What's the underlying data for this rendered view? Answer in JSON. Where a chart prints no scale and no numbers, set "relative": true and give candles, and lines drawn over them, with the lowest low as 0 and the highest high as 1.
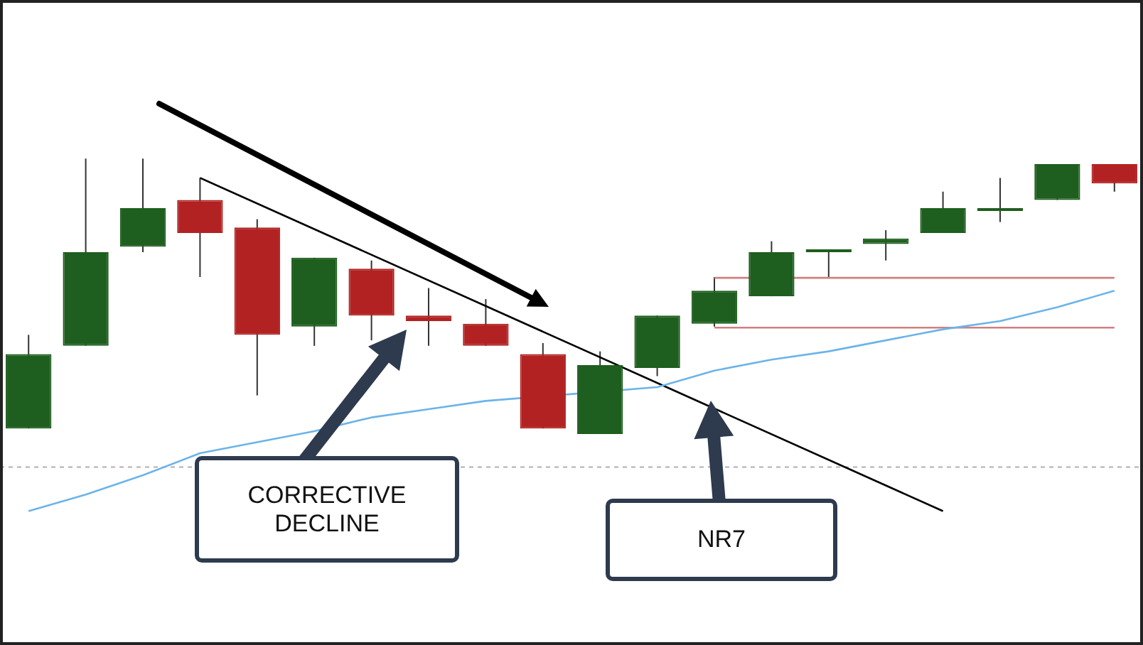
{
  "chart_data": {
    "type": "candlestick",
    "relative": true,
    "categories": [
      null,
      null,
      null,
      null,
      null,
      null,
      null,
      null,
      null,
      null,
      null,
      null,
      null,
      null,
      null,
      null,
      null,
      null,
      null,
      null
    ],
    "series": [
      {
        "colors": [
          "#1e5e1e",
          "#1e5e1e",
          "#1e5e1e",
          "#b22222",
          "#b22222",
          "#1e5e1e",
          "#b22222",
          "#b22222",
          "#b22222",
          "#b22222",
          "#1e5e1e",
          "#1e5e1e",
          "#1e5e1e",
          "#1e5e1e",
          "#1e5e1e",
          "#1e5e1e",
          "#1e5e1e",
          "#1e5e1e",
          "#1e5e1e",
          "#b22222"
        ],
        "ohlc": [
          [
            0.02,
            0.36,
            0.02,
            0.29
          ],
          [
            0.32,
            1.0,
            0.32,
            0.66
          ],
          [
            0.68,
            1.0,
            0.66,
            0.82
          ],
          [
            0.85,
            0.93,
            0.57,
            0.73
          ],
          [
            0.75,
            0.78,
            0.14,
            0.36
          ],
          [
            0.39,
            0.64,
            0.32,
            0.64
          ],
          [
            0.6,
            0.63,
            0.34,
            0.43
          ],
          [
            0.43,
            0.53,
            0.32,
            0.41
          ],
          [
            0.4,
            0.49,
            0.32,
            0.32
          ],
          [
            0.29,
            0.33,
            0.02,
            0.02
          ],
          [
            0.0,
            0.3,
            0.0,
            0.25
          ],
          [
            0.24,
            0.43,
            0.21,
            0.43
          ],
          [
            0.4,
            0.57,
            0.39,
            0.52
          ],
          [
            0.5,
            0.7,
            0.5,
            0.66
          ],
          [
            0.66,
            0.67,
            0.57,
            0.67
          ],
          [
            0.69,
            0.74,
            0.63,
            0.71
          ],
          [
            0.73,
            0.88,
            0.73,
            0.82
          ],
          [
            0.81,
            0.93,
            0.77,
            0.82
          ],
          [
            0.85,
            0.98,
            0.85,
            0.98
          ],
          [
            0.98,
            0.98,
            0.88,
            0.91
          ]
        ]
      },
      {
        "type": "line",
        "color": "#6cb4e8",
        "values": [
          -0.28,
          -0.22,
          -0.15,
          -0.07,
          -0.03,
          0.01,
          0.06,
          0.09,
          0.12,
          null,
          null,
          0.17,
          0.23,
          0.27,
          0.3,
          0.34,
          0.38,
          0.41,
          0.46,
          0.52
        ]
      },
      {
        "type": "line",
        "color": "#000000",
        "values": [
          null,
          null,
          null,
          0.93,
          null,
          null,
          null,
          null,
          null,
          null,
          null,
          null,
          null,
          null,
          null,
          null,
          -0.28,
          null,
          null,
          null
        ]
      },
      {
        "type": "line",
        "color": "#d08080",
        "values": [
          null,
          null,
          null,
          null,
          null,
          null,
          null,
          null,
          null,
          null,
          null,
          null,
          0.567,
          null,
          0.567,
          0.567,
          0.567,
          0.567,
          0.567,
          0.567
        ]
      },
      {
        "type": "line",
        "color": "#d08080",
        "values": [
          null,
          null,
          null,
          null,
          null,
          null,
          null,
          null,
          null,
          null,
          null,
          null,
          0.386,
          0.386,
          0.386,
          0.386,
          0.386,
          0.386,
          0.386,
          0.386
        ]
      }
    ],
    "ref_lines": [
      {
        "axis": "y",
        "value": -0.12,
        "color": "#b0b0b0",
        "line_style": "dashed"
      }
    ],
    "annotations": [
      "CORRECTIVE DECLINE",
      "NR7"
    ]
  }
}
